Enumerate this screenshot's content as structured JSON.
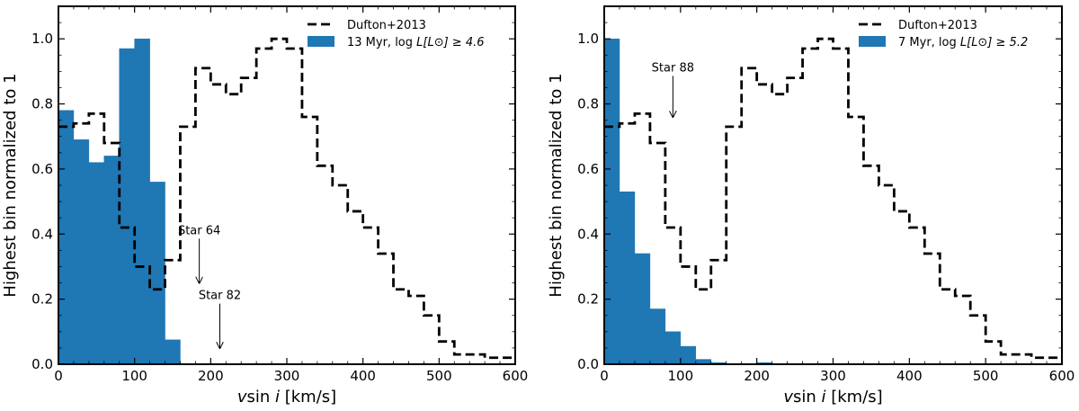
{
  "chart_data": [
    {
      "type": "bar",
      "xlabel": "v sin i [km/s]",
      "xlabel_main": "v",
      "xlabel_func": "sin",
      "xlabel_var": "i",
      "xlabel_unit": "[km/s]",
      "ylabel": "Highest bin normalized to 1",
      "xlim": [
        0,
        600
      ],
      "ylim": [
        0,
        1.1
      ],
      "xticks": [
        "0",
        "100",
        "200",
        "300",
        "400",
        "500",
        "600"
      ],
      "yticks": [
        "0.0",
        "0.2",
        "0.4",
        "0.6",
        "0.8",
        "1.0"
      ],
      "legend_position": "top-right",
      "histogram": {
        "name": "13 Myr, log L[L⊙] ≥ 4.6",
        "legend_prefix": "13 Myr, log",
        "legend_math": "L[L⊙] ≥ 4.6",
        "color": "#1f77b4",
        "bin_width": 20,
        "bin_starts": [
          0,
          20,
          40,
          60,
          80,
          100,
          120,
          140
        ],
        "values": [
          0.78,
          0.69,
          0.62,
          0.64,
          0.97,
          1.0,
          0.56,
          0.075
        ]
      },
      "reference": {
        "name": "Dufton+2013",
        "style": "dashed",
        "color": "#000000",
        "bin_width": 20,
        "values": [
          0.73,
          0.74,
          0.77,
          0.68,
          0.42,
          0.3,
          0.23,
          0.32,
          0.73,
          0.91,
          0.86,
          0.83,
          0.88,
          0.97,
          1.0,
          0.97,
          0.76,
          0.61,
          0.55,
          0.47,
          0.42,
          0.34,
          0.23,
          0.21,
          0.15,
          0.07,
          0.03,
          0.03,
          0.02,
          0.02
        ]
      },
      "annotations": [
        {
          "label": "Star 64",
          "x": 185,
          "y_from": 0.4,
          "y_to": 0.25
        },
        {
          "label": "Star 82",
          "x": 212,
          "y_from": 0.2,
          "y_to": 0.05
        }
      ]
    },
    {
      "type": "bar",
      "xlabel": "v sin i [km/s]",
      "xlabel_main": "v",
      "xlabel_func": "sin",
      "xlabel_var": "i",
      "xlabel_unit": "[km/s]",
      "ylabel": "Highest bin normalized to 1",
      "xlim": [
        0,
        600
      ],
      "ylim": [
        0,
        1.1
      ],
      "xticks": [
        "0",
        "100",
        "200",
        "300",
        "400",
        "500",
        "600"
      ],
      "yticks": [
        "0.0",
        "0.2",
        "0.4",
        "0.6",
        "0.8",
        "1.0"
      ],
      "legend_position": "top-right",
      "histogram": {
        "name": "7 Myr, log L[L⊙] ≥ 5.2",
        "legend_prefix": "7 Myr, log",
        "legend_math": "L[L⊙] ≥ 5.2",
        "color": "#1f77b4",
        "bin_width": 20,
        "bin_starts": [
          0,
          20,
          40,
          60,
          80,
          100,
          120,
          140,
          160,
          180,
          200
        ],
        "values": [
          1.0,
          0.53,
          0.34,
          0.17,
          0.1,
          0.055,
          0.015,
          0.005,
          0.0,
          0.0,
          0.005
        ]
      },
      "reference": {
        "name": "Dufton+2013",
        "style": "dashed",
        "color": "#000000",
        "bin_width": 20,
        "values": [
          0.73,
          0.74,
          0.77,
          0.68,
          0.42,
          0.3,
          0.23,
          0.32,
          0.73,
          0.91,
          0.86,
          0.83,
          0.88,
          0.97,
          1.0,
          0.97,
          0.76,
          0.61,
          0.55,
          0.47,
          0.42,
          0.34,
          0.23,
          0.21,
          0.15,
          0.07,
          0.03,
          0.03,
          0.02,
          0.02
        ]
      },
      "annotations": [
        {
          "label": "Star 88",
          "x": 90,
          "y_from": 0.9,
          "y_to": 0.76
        }
      ]
    }
  ]
}
